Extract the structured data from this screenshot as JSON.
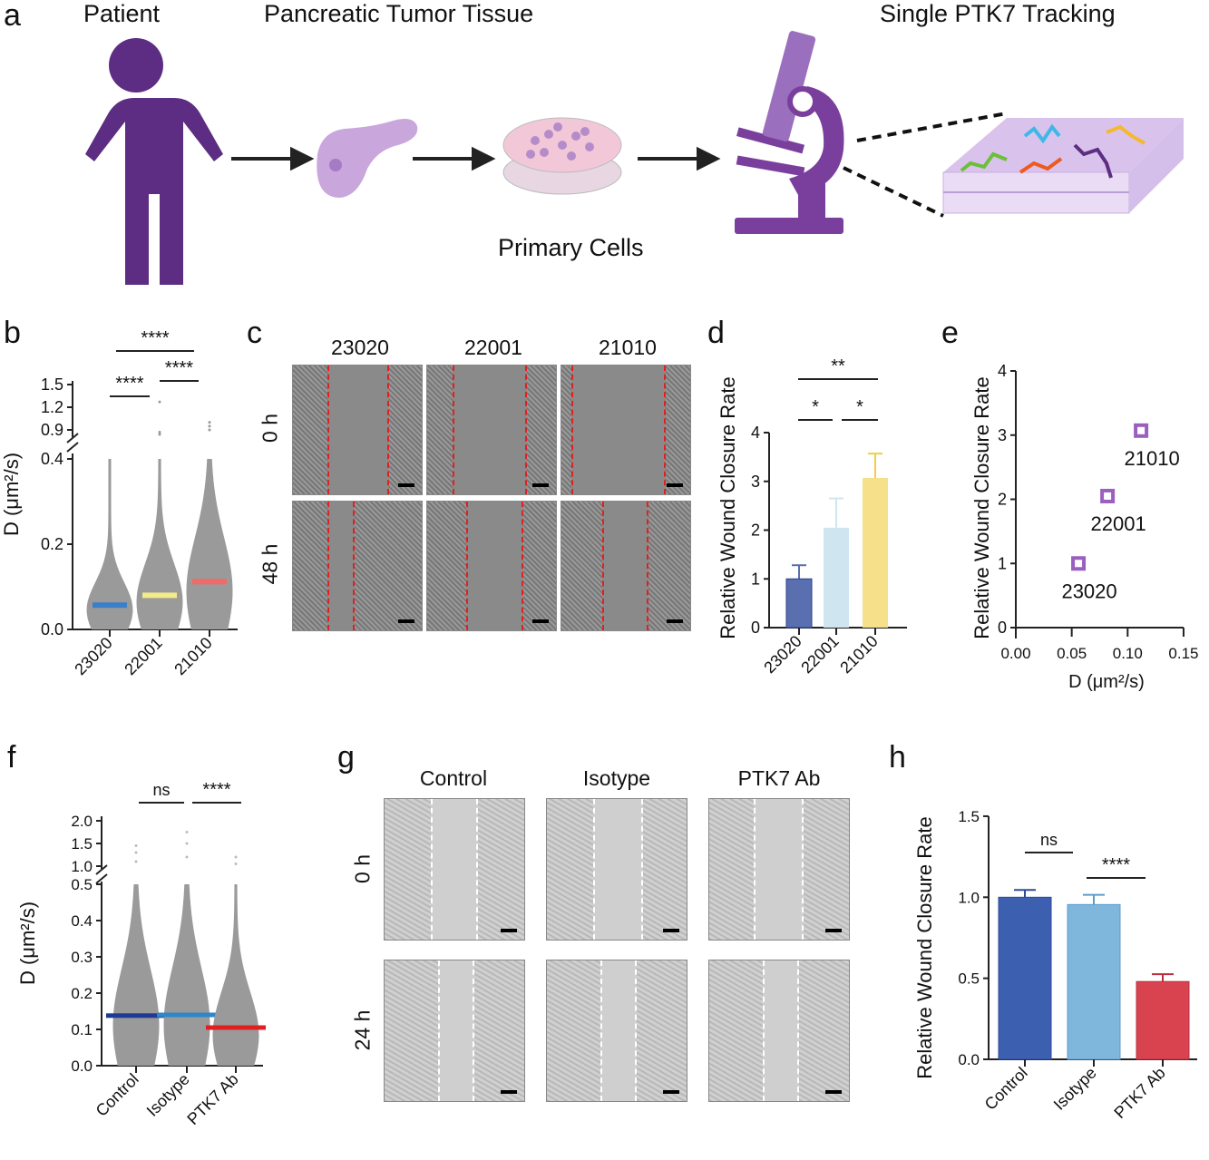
{
  "panel_a": {
    "letter": "a",
    "patient_label": "Patient",
    "tissue_label": "Pancreatic Tumor Tissue",
    "cells_label": "Primary Cells",
    "tracking_label": "Single PTK7 Tracking",
    "icons": [
      "person-icon",
      "pancreas-icon",
      "petri-dish-icon",
      "microscope-icon",
      "membrane-trajectories-icon"
    ],
    "accent": "#5c2d82"
  },
  "panel_c": {
    "letter": "c",
    "columns": [
      "23020",
      "22001",
      "21010"
    ],
    "rows": [
      "0 h",
      "48 h"
    ]
  },
  "panel_g": {
    "letter": "g",
    "columns": [
      "Control",
      "Isotype",
      "PTK7 Ab"
    ],
    "rows": [
      "0 h",
      "24 h"
    ]
  },
  "chart_data": [
    {
      "panel": "b",
      "type": "scatter",
      "ylabel": "D (μm²/s)",
      "categories": [
        "23020",
        "22001",
        "21010"
      ],
      "medians": [
        0.057,
        0.08,
        0.112
      ],
      "median_colors": [
        "#3a7fc8",
        "#f2ec8a",
        "#f06a6a"
      ],
      "y_ticks_lower": [
        "0.0",
        "0.2",
        "0.4"
      ],
      "y_ticks_upper": [
        "0.9",
        "1.2",
        "1.5"
      ],
      "ylim": [
        0,
        1.5
      ],
      "axis_break": [
        0.4,
        0.9
      ],
      "significance": [
        {
          "pair": [
            "23020",
            "22001"
          ],
          "label": "****"
        },
        {
          "pair": [
            "22001",
            "21010"
          ],
          "label": "****"
        },
        {
          "pair": [
            "23020",
            "21010"
          ],
          "label": "****"
        }
      ]
    },
    {
      "panel": "d",
      "type": "bar",
      "ylabel": "Relative Wound Closure Rate",
      "categories": [
        "23020",
        "22001",
        "21010"
      ],
      "values": [
        1.0,
        2.05,
        3.07
      ],
      "errors": [
        0.28,
        0.6,
        0.5
      ],
      "colors": [
        "#5a6fb0",
        "#cfe6f0",
        "#f7e08a"
      ],
      "y_ticks": [
        "0",
        "1",
        "2",
        "3",
        "4"
      ],
      "ylim": [
        0,
        4
      ],
      "significance": [
        {
          "pair": [
            "23020",
            "22001"
          ],
          "label": "*"
        },
        {
          "pair": [
            "22001",
            "21010"
          ],
          "label": "*"
        },
        {
          "pair": [
            "23020",
            "21010"
          ],
          "label": "**"
        }
      ]
    },
    {
      "panel": "e",
      "type": "scatter",
      "xlabel": "D (μm²/s)",
      "ylabel": "Relative Wound Closure Rate",
      "points": [
        {
          "label": "23020",
          "x": 0.056,
          "y": 1.0
        },
        {
          "label": "22001",
          "x": 0.082,
          "y": 2.05
        },
        {
          "label": "21010",
          "x": 0.112,
          "y": 3.07
        }
      ],
      "x_ticks": [
        "0.00",
        "0.05",
        "0.10",
        "0.15"
      ],
      "xlim": [
        0,
        0.15
      ],
      "y_ticks": [
        "0",
        "1",
        "2",
        "3",
        "4"
      ],
      "ylim": [
        0,
        4
      ],
      "marker_color": "#9b5fc0"
    },
    {
      "panel": "f",
      "type": "scatter",
      "ylabel": "D (μm²/s)",
      "categories": [
        "Control",
        "Isotype",
        "PTK7 Ab"
      ],
      "medians": [
        0.138,
        0.14,
        0.105
      ],
      "median_colors": [
        "#1f3a93",
        "#2f86c8",
        "#e02020"
      ],
      "y_ticks_lower": [
        "0.0",
        "0.1",
        "0.2",
        "0.3",
        "0.4",
        "0.5"
      ],
      "y_ticks_upper": [
        "1.0",
        "1.5",
        "2.0"
      ],
      "ylim": [
        0,
        2.0
      ],
      "axis_break": [
        0.5,
        1.0
      ],
      "significance": [
        {
          "pair": [
            "Control",
            "Isotype"
          ],
          "label": "ns"
        },
        {
          "pair": [
            "Isotype",
            "PTK7 Ab"
          ],
          "label": "****"
        }
      ]
    },
    {
      "panel": "h",
      "type": "bar",
      "ylabel": "Relative Wound Closure Rate",
      "categories": [
        "Control",
        "Isotype",
        "PTK7 Ab"
      ],
      "values": [
        1.0,
        0.955,
        0.48
      ],
      "errors": [
        0.045,
        0.06,
        0.045
      ],
      "colors": [
        "#3d5fb0",
        "#7fb6dc",
        "#d9434f"
      ],
      "y_ticks": [
        "0.0",
        "0.5",
        "1.0",
        "1.5"
      ],
      "ylim": [
        0,
        1.5
      ],
      "significance": [
        {
          "pair": [
            "Control",
            "Isotype"
          ],
          "label": "ns"
        },
        {
          "pair": [
            "Isotype",
            "PTK7 Ab"
          ],
          "label": "****"
        }
      ]
    }
  ]
}
